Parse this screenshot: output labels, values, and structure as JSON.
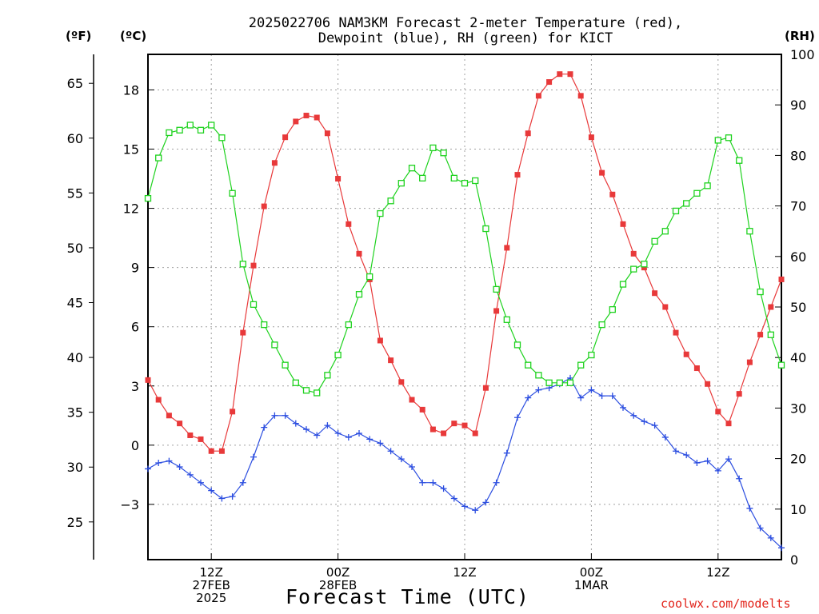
{
  "title": {
    "line1": "2025022706 NAM3KM Forecast 2-meter Temperature (red),",
    "line2": "Dewpoint (blue), RH (green) for KICT"
  },
  "units": {
    "fahrenheit": "(ºF)",
    "celsius": "(ºC)",
    "rh": "(RH)"
  },
  "xlabel": "Forecast Time (UTC)",
  "credit": "coolwx.com/modelts",
  "colors": {
    "temperature": "#e8393a",
    "dewpoint": "#2c4ee0",
    "rh": "#1ed21e",
    "grid": "#a0a0a0"
  },
  "chart_data": {
    "type": "line",
    "x_unit": "hours from 2025-02-27 06 UTC",
    "x_range": [
      0,
      60
    ],
    "x_ticks": [
      {
        "x": 6,
        "lines": [
          "12Z",
          "27FEB",
          "2025"
        ]
      },
      {
        "x": 18,
        "lines": [
          "00Z",
          "28FEB"
        ]
      },
      {
        "x": 30,
        "lines": [
          "12Z"
        ]
      },
      {
        "x": 42,
        "lines": [
          "00Z",
          "1MAR"
        ]
      },
      {
        "x": 54,
        "lines": [
          "12Z"
        ]
      }
    ],
    "y_celsius": {
      "range": [
        -5.8,
        19.8
      ],
      "ticks": [
        18,
        15,
        12,
        9,
        6,
        3,
        0,
        -3
      ],
      "tick_labels": [
        "18",
        "15",
        "12",
        "9",
        "6",
        "3",
        "0",
        "−3"
      ]
    },
    "y_fahrenheit": {
      "ticks": [
        65,
        60,
        55,
        50,
        45,
        40,
        35,
        30,
        25
      ]
    },
    "y_rh": {
      "range": [
        0,
        100
      ],
      "ticks": [
        100,
        90,
        80,
        70,
        60,
        50,
        40,
        30,
        20,
        10,
        0
      ]
    },
    "grid": true,
    "series": [
      {
        "name": "2-meter Temperature",
        "axis": "celsius",
        "marker": "filled-square",
        "values": [
          3.3,
          2.3,
          1.5,
          1.1,
          0.5,
          0.3,
          -0.3,
          -0.3,
          1.7,
          5.7,
          9.1,
          12.1,
          14.3,
          15.6,
          16.4,
          16.7,
          16.6,
          15.8,
          13.5,
          11.2,
          9.7,
          8.4,
          5.3,
          4.3,
          3.2,
          2.3,
          1.8,
          0.8,
          0.6,
          1.1,
          1.0,
          0.6,
          2.9,
          6.8,
          10.0,
          13.7,
          15.8,
          17.7,
          18.4,
          18.8,
          18.8,
          17.7,
          15.6,
          13.8,
          12.7,
          11.2,
          9.7,
          9.0,
          7.7,
          7.0,
          5.7,
          4.6,
          3.9,
          3.1,
          1.7,
          1.1,
          2.6,
          4.2,
          5.6,
          7.0,
          8.4
        ]
      },
      {
        "name": "Dewpoint",
        "axis": "celsius",
        "marker": "plus",
        "values": [
          -1.2,
          -0.9,
          -0.8,
          -1.1,
          -1.5,
          -1.9,
          -2.3,
          -2.7,
          -2.6,
          -1.9,
          -0.6,
          0.9,
          1.5,
          1.5,
          1.1,
          0.8,
          0.5,
          1.0,
          0.6,
          0.4,
          0.6,
          0.3,
          0.1,
          -0.3,
          -0.7,
          -1.1,
          -1.9,
          -1.9,
          -2.2,
          -2.7,
          -3.1,
          -3.3,
          -2.9,
          -1.9,
          -0.4,
          1.4,
          2.4,
          2.8,
          2.9,
          3.1,
          3.4,
          2.4,
          2.8,
          2.5,
          2.5,
          1.9,
          1.5,
          1.2,
          1.0,
          0.4,
          -0.3,
          -0.5,
          -0.9,
          -0.8,
          -1.3,
          -0.7,
          -1.7,
          -3.2,
          -4.2,
          -4.7,
          -5.2
        ]
      },
      {
        "name": "RH",
        "axis": "rh",
        "marker": "open-square",
        "values": [
          71.5,
          79.5,
          84.5,
          85.0,
          86.0,
          85.0,
          86.0,
          83.5,
          72.5,
          58.5,
          50.5,
          46.5,
          42.5,
          38.5,
          35.0,
          33.5,
          33.0,
          36.5,
          40.5,
          46.5,
          52.5,
          56.0,
          68.5,
          71.0,
          74.5,
          77.5,
          75.5,
          81.5,
          80.5,
          75.5,
          74.5,
          75.0,
          65.5,
          53.5,
          47.5,
          42.5,
          38.5,
          36.5,
          35.0,
          35.0,
          35.0,
          38.5,
          40.5,
          46.5,
          49.5,
          54.5,
          57.5,
          58.5,
          63.0,
          65.0,
          69.0,
          70.5,
          72.5,
          74.0,
          83.0,
          83.5,
          79.0,
          65.0,
          53.0,
          44.5,
          38.5
        ]
      }
    ]
  }
}
